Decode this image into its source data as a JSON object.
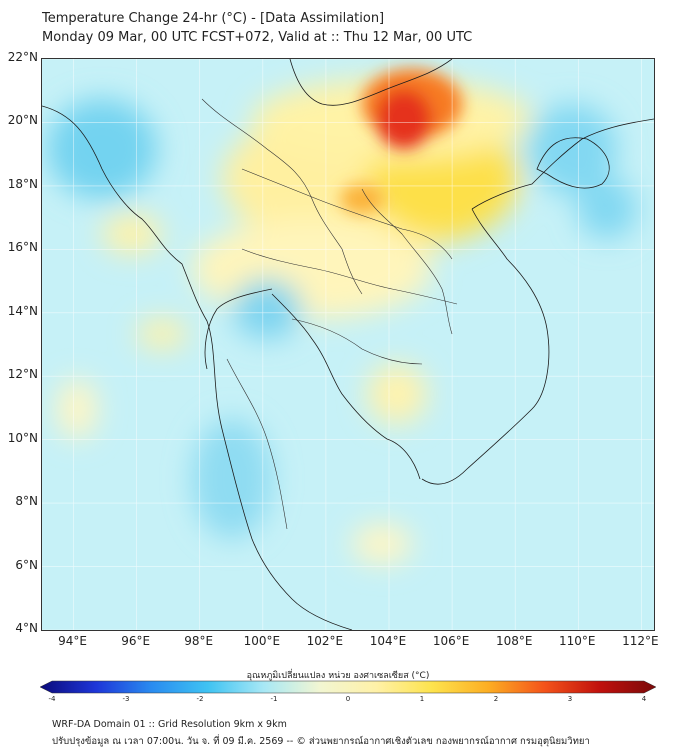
{
  "header": {
    "title_line1": "Temperature Change 24-hr (°C) - [Data Assimilation]",
    "title_line2": "Monday 09 Mar, 00 UTC FCST+072, Valid at :: Thu 12 Mar, 00 UTC"
  },
  "map": {
    "lat_labels": [
      "22°N",
      "20°N",
      "18°N",
      "16°N",
      "14°N",
      "12°N",
      "10°N",
      "8°N",
      "6°N",
      "4°N"
    ],
    "lon_labels": [
      "94°E",
      "96°E",
      "98°E",
      "100°E",
      "102°E",
      "104°E",
      "106°E",
      "108°E",
      "110°E",
      "112°E"
    ],
    "lat_range": [
      4,
      22
    ],
    "lon_range": [
      93,
      112.4
    ],
    "background_color": "#c6f1f7"
  },
  "colorbar": {
    "title": "อุณหภูมิเปลี่ยนแปลง หน่วย องศาเซลเซียส (°C)",
    "ticks": [
      "-4",
      "-3",
      "-2",
      "-1",
      "0",
      "1",
      "2",
      "3",
      "4"
    ],
    "range": [
      -4,
      4
    ],
    "colors": [
      "#0b0a7a",
      "#1e36d8",
      "#2a8cf0",
      "#3fc3f2",
      "#a8e8f5",
      "#f2f6d2",
      "#fff1a8",
      "#fde34d",
      "#fcae23",
      "#f4541a",
      "#c0100c",
      "#7a0a0a"
    ]
  },
  "footer": {
    "line1": "WRF-DA Domain 01 :: Grid Resolution 9km x 9km",
    "line2": "ปรับปรุงข้อมูล ณ เวลา 07:00น. วัน จ. ที่ 09 มี.ค. 2569 -- © ส่วนพยากรณ์อากาศเชิงตัวเลข กองพยากรณ์อากาศ กรมอุตุนิยมวิทยา"
  }
}
